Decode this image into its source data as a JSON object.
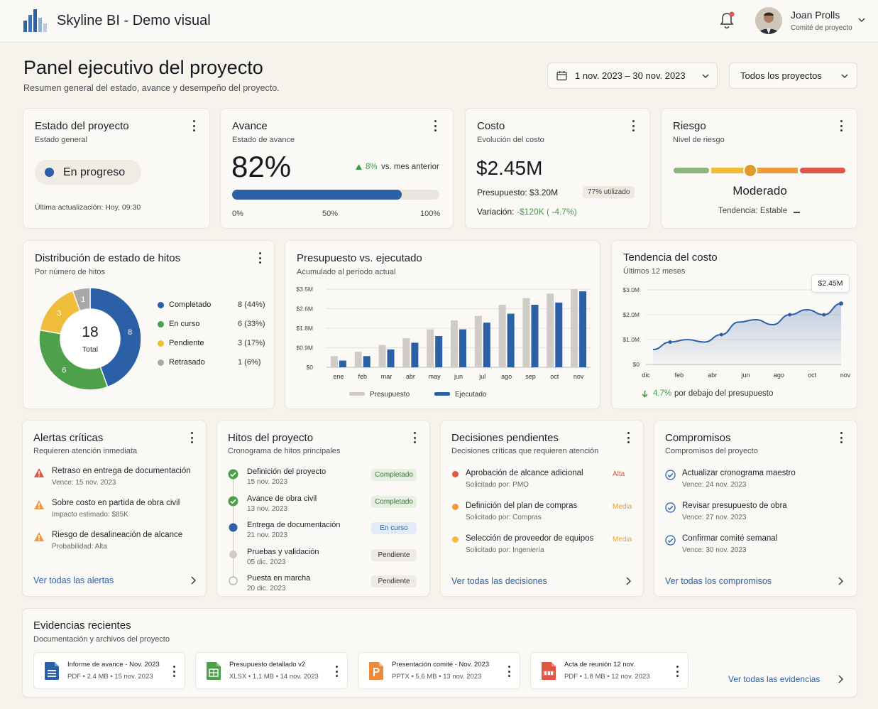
{
  "app": {
    "title": "Skyline BI - Demo visual"
  },
  "user": {
    "name": "Joan Prolls",
    "role": "Comité de proyecto"
  },
  "page": {
    "title": "Panel ejecutivo del proyecto",
    "subtitle": "Resumen general del estado, avance y desempeño del proyecto."
  },
  "filters": {
    "date_range": "1 nov. 2023 – 30 nov. 2023",
    "project": "Todos los proyectos"
  },
  "estado": {
    "title": "Estado del proyecto",
    "subtitle": "Estado general",
    "status": "En progreso",
    "updated": "Última actualización: Hoy, 09:30",
    "status_color": "#2b5fa6"
  },
  "avance": {
    "title": "Avance",
    "subtitle": "Estado de avance",
    "value": "82%",
    "progress": 0.82,
    "delta": "8%",
    "delta_text": "vs. mes anterior",
    "scale": [
      "0%",
      "50%",
      "100%"
    ]
  },
  "costo": {
    "title": "Costo",
    "subtitle": "Evolución del costo",
    "value": "$2.45M",
    "budget": "Presupuesto: $3.20M",
    "used": "77% utilizado",
    "variance_label": "Variación:",
    "variance_value": "-$120K ( -4.7%)"
  },
  "riesgo": {
    "title": "Riesgo",
    "subtitle": "Nivel de riesgo",
    "level": "Moderado",
    "trend": "Tendencia: Estable",
    "marker_position": 0.45
  },
  "hitos_dist": {
    "title": "Distribución de estado de hitos",
    "subtitle": "Por número de hitos",
    "total": "18",
    "total_label": "Total",
    "legend": [
      {
        "label": "Completado",
        "value": "8 (44%)",
        "color": "#2b5fa6"
      },
      {
        "label": "En curso",
        "value": "6 (33%)",
        "color": "#4ea04b"
      },
      {
        "label": "Pendiente",
        "value": "3 (17%)",
        "color": "#f0bd3a"
      },
      {
        "label": "Retrasado",
        "value": "1 (6%)",
        "color": "#a8a8a8"
      }
    ]
  },
  "presupuesto_chart": {
    "title": "Presupuesto vs. ejecutado",
    "subtitle": "Acumulado al período actual"
  },
  "tendencia_chart": {
    "title": "Tendencia del costo",
    "subtitle": "Últimos 12 meses",
    "callout": "$2.45M",
    "footer_value": "4.7%",
    "footer_text": "por debajo del presupuesto"
  },
  "chart_data": [
    {
      "type": "pie",
      "name_hint": "hitos",
      "categories": [
        "Completado",
        "En curso",
        "Pendiente",
        "Retrasado"
      ],
      "values": [
        8,
        6,
        3,
        1
      ],
      "data_labels": [
        "8",
        "6",
        "3",
        "1"
      ],
      "colors": [
        "#2b5fa6",
        "#4ea04b",
        "#f0bd3a",
        "#a8a8a8"
      ]
    },
    {
      "type": "bar",
      "categories": [
        "ene",
        "feb",
        "mar",
        "abr",
        "may",
        "jun",
        "jul",
        "ago",
        "sep",
        "oct",
        "nov"
      ],
      "series": [
        {
          "name": "Presupuesto",
          "values": [
            0.5,
            0.7,
            1.0,
            1.3,
            1.7,
            2.1,
            2.3,
            2.8,
            3.1,
            3.3,
            3.5
          ],
          "color": "#cfccc7"
        },
        {
          "name": "Ejecutado",
          "values": [
            0.3,
            0.5,
            0.8,
            1.1,
            1.4,
            1.7,
            2.0,
            2.4,
            2.8,
            2.9,
            3.4
          ],
          "color": "#2b5fa6"
        }
      ],
      "yticks": [
        "$0",
        "$0.9M",
        "$1.8M",
        "$2.6M",
        "$3.5M"
      ],
      "ylim": [
        0,
        3.5
      ],
      "legend": "bottom"
    },
    {
      "type": "area",
      "x": [
        "dic",
        "ene",
        "feb",
        "mar",
        "abr",
        "may",
        "jun",
        "jul",
        "ago",
        "sep",
        "oct",
        "nov"
      ],
      "xticks": [
        "dic",
        "feb",
        "abr",
        "jun",
        "ago",
        "oct",
        "nov"
      ],
      "values": [
        0.6,
        0.9,
        1.0,
        0.9,
        1.2,
        1.7,
        1.8,
        1.6,
        2.0,
        2.2,
        2.0,
        2.45
      ],
      "yticks": [
        "$0",
        "$1.0M",
        "$2.0M",
        "$3.0M"
      ],
      "ylim": [
        0,
        3.0
      ],
      "color": "#2b5fa6"
    }
  ],
  "alertas": {
    "title": "Alertas críticas",
    "subtitle": "Requieren atención inmediata",
    "link": "Ver todas las alertas",
    "items": [
      {
        "title": "Retraso en entrega de documentación",
        "sub": "Vence: 15 nov. 2023",
        "color": "#e05543"
      },
      {
        "title": "Sobre costo en partida de obra civil",
        "sub": "Impacto estimado: $85K",
        "color": "#ef9a3a"
      },
      {
        "title": "Riesgo de desalineación de alcance",
        "sub": "Probabilidad: Alta",
        "color": "#ef9a3a"
      }
    ]
  },
  "hitos": {
    "title": "Hitos del proyecto",
    "subtitle": "Cronograma de hitos principales",
    "items": [
      {
        "title": "Definición del proyecto",
        "date": "15 nov. 2023",
        "status": "Completado",
        "kind": "done"
      },
      {
        "title": "Avance de obra civil",
        "date": "13 nov. 2023",
        "status": "Completado",
        "kind": "done"
      },
      {
        "title": "Entrega de documentación",
        "date": "21 nov. 2023",
        "status": "En curso",
        "kind": "current"
      },
      {
        "title": "Pruebas y validación",
        "date": "05 dic. 2023",
        "status": "Pendiente",
        "kind": "pending"
      },
      {
        "title": "Puesta en marcha",
        "date": "20 dic. 2023",
        "status": "Pendiente",
        "kind": "empty"
      }
    ]
  },
  "decisiones": {
    "title": "Decisiones pendientes",
    "subtitle": "Decisiones críticas que requieren atención",
    "link": "Ver todas las decisiones",
    "items": [
      {
        "title": "Aprobación de alcance adicional",
        "sub": "Solicitado por: PMO",
        "priority": "Alta",
        "color": "#e05543"
      },
      {
        "title": "Definición del plan de compras",
        "sub": "Solicitado por: Compras",
        "priority": "Media",
        "color": "#ef9a3a"
      },
      {
        "title": "Selección de proveedor de equipos",
        "sub": "Solicitado por: Ingeniería",
        "priority": "Media",
        "color": "#f0bd3a"
      }
    ]
  },
  "compromisos": {
    "title": "Compromisos",
    "subtitle": "Compromisos del proyecto",
    "link": "Ver todas los compromisos",
    "items": [
      {
        "title": "Actualizar cronograma maestro",
        "sub": "Vence: 24 nov. 2023"
      },
      {
        "title": "Revisar presupuesto de obra",
        "sub": "Vence: 27 nov. 2023"
      },
      {
        "title": "Confirmar comité semanal",
        "sub": "Vence: 30 nov. 2023"
      }
    ]
  },
  "evidencias": {
    "title": "Evidencias recientes",
    "subtitle": "Documentación y archivos del proyecto",
    "link": "Ver todas las evidencias",
    "files": [
      {
        "name": "Informe de avance - Nov. 2023",
        "meta": "PDF  •  2.4 MB  •  15 nov. 2023",
        "icon": "doc-icon",
        "color": "#2b5fa6"
      },
      {
        "name": "Presupuesto detallado v2",
        "meta": "XLSX  •  1.1 MB  •  14 nov. 2023",
        "icon": "spreadsheet-icon",
        "color": "#4ea04b"
      },
      {
        "name": "Presentación comité - Nov. 2023",
        "meta": "PPTX  •  5.6 MB  •  13 nov. 2023",
        "icon": "presentation-icon",
        "color": "#ef8a3a"
      },
      {
        "name": "Acta de reunión 12 nov.",
        "meta": "PDF  •  1.8 MB  •  12 nov. 2023",
        "icon": "pdf-icon",
        "color": "#e05543"
      }
    ]
  }
}
